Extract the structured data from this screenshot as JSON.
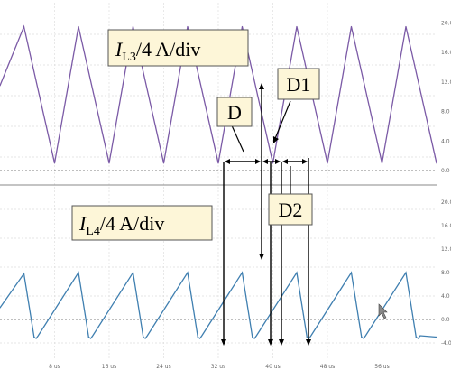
{
  "chart_data": [
    {
      "type": "line",
      "title": "IL3/4 A/div",
      "label_main": "I",
      "label_sub": "L3",
      "label_rest": "/4 A/div",
      "yticks": [
        "20.0",
        "16.0",
        "12.0",
        "8.0",
        "4.0",
        "0.0"
      ],
      "ylim": [
        -2,
        22
      ],
      "xlim": [
        0,
        64
      ],
      "color": "#7b5aa6",
      "series": [
        {
          "x": [
            0,
            3.5,
            8.0,
            11.5,
            16.0,
            19.5,
            24.0,
            27.5,
            32.0,
            35.5,
            40.0,
            43.5,
            48.0,
            51.5,
            56.0,
            59.5,
            64.0
          ],
          "y": [
            11.5,
            19.5,
            1.0,
            19.5,
            1.0,
            19.5,
            1.0,
            19.5,
            1.0,
            19.5,
            1.0,
            19.5,
            1.0,
            19.5,
            1.0,
            19.5,
            1.0
          ]
        }
      ]
    },
    {
      "type": "line",
      "title": "IL4/4 A/div",
      "label_main": "I",
      "label_sub": "L4",
      "label_rest": "/4 A/div",
      "yticks": [
        "20.0",
        "16.0",
        "12.0",
        "8.0",
        "4.0",
        "0.0",
        "-4.0"
      ],
      "xticks": [
        "8 us",
        "16 us",
        "24 us",
        "32 us",
        "40 us",
        "48 us",
        "56 us"
      ],
      "ylim": [
        -5,
        22
      ],
      "xlim": [
        0,
        64
      ],
      "color": "#3f7fb0",
      "series": [
        {
          "x": [
            0,
            3.5,
            5.0,
            11.5,
            13.0,
            19.5,
            21.0,
            27.5,
            29.0,
            35.5,
            37.0,
            43.5,
            45.0,
            51.5,
            53.0,
            59.5,
            61.0,
            64.0
          ],
          "y": [
            2.0,
            7.8,
            -3.0,
            8.0,
            -3.0,
            8.0,
            -3.0,
            8.0,
            -3.0,
            8.0,
            -3.0,
            8.0,
            -3.0,
            8.0,
            -3.0,
            8.0,
            -3.0,
            -3.0
          ]
        }
      ]
    }
  ],
  "annotations": {
    "d": "D",
    "d1": "D1",
    "d2": "D2"
  }
}
